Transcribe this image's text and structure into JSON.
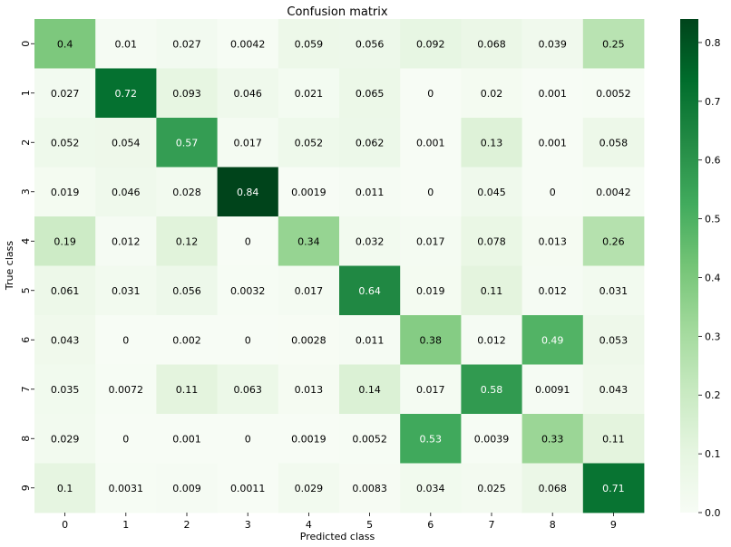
{
  "chart_data": {
    "type": "heatmap",
    "title": "Confusion matrix",
    "xlabel": "Predicted class",
    "ylabel": "True class",
    "x_categories": [
      "0",
      "1",
      "2",
      "3",
      "4",
      "5",
      "6",
      "7",
      "8",
      "9"
    ],
    "y_categories": [
      "0",
      "1",
      "2",
      "3",
      "4",
      "5",
      "6",
      "7",
      "8",
      "9"
    ],
    "values": [
      [
        "0.4",
        "0.01",
        "0.027",
        "0.0042",
        "0.059",
        "0.056",
        "0.092",
        "0.068",
        "0.039",
        "0.25"
      ],
      [
        "0.027",
        "0.72",
        "0.093",
        "0.046",
        "0.021",
        "0.065",
        "0",
        "0.02",
        "0.001",
        "0.0052"
      ],
      [
        "0.052",
        "0.054",
        "0.57",
        "0.017",
        "0.052",
        "0.062",
        "0.001",
        "0.13",
        "0.001",
        "0.058"
      ],
      [
        "0.019",
        "0.046",
        "0.028",
        "0.84",
        "0.0019",
        "0.011",
        "0",
        "0.045",
        "0",
        "0.0042"
      ],
      [
        "0.19",
        "0.012",
        "0.12",
        "0",
        "0.34",
        "0.032",
        "0.017",
        "0.078",
        "0.013",
        "0.26"
      ],
      [
        "0.061",
        "0.031",
        "0.056",
        "0.0032",
        "0.017",
        "0.64",
        "0.019",
        "0.11",
        "0.012",
        "0.031"
      ],
      [
        "0.043",
        "0",
        "0.002",
        "0",
        "0.0028",
        "0.011",
        "0.38",
        "0.012",
        "0.49",
        "0.053"
      ],
      [
        "0.035",
        "0.0072",
        "0.11",
        "0.063",
        "0.013",
        "0.14",
        "0.017",
        "0.58",
        "0.0091",
        "0.043"
      ],
      [
        "0.029",
        "0",
        "0.001",
        "0",
        "0.0019",
        "0.0052",
        "0.53",
        "0.0039",
        "0.33",
        "0.11"
      ],
      [
        "0.1",
        "0.0031",
        "0.009",
        "0.0011",
        "0.029",
        "0.0083",
        "0.034",
        "0.025",
        "0.068",
        "0.71"
      ]
    ],
    "colormap": "Greens",
    "colorbar": {
      "range": [
        0,
        0.84
      ],
      "ticks": [
        "0.0",
        "0.1",
        "0.2",
        "0.3",
        "0.4",
        "0.5",
        "0.6",
        "0.7",
        "0.8"
      ]
    },
    "grid": false
  }
}
